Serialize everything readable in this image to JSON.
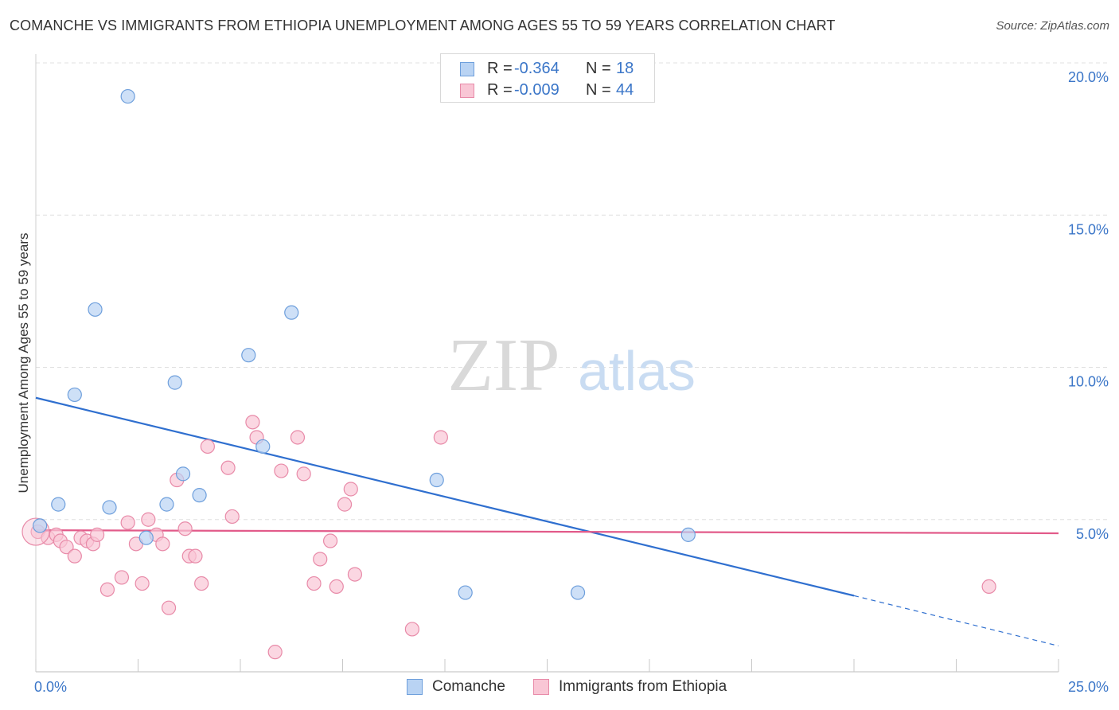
{
  "title": "COMANCHE VS IMMIGRANTS FROM ETHIOPIA UNEMPLOYMENT AMONG AGES 55 TO 59 YEARS CORRELATION CHART",
  "source": "Source: ZipAtlas.com",
  "watermark": {
    "zip": "ZIP",
    "atlas": "atlas"
  },
  "colors": {
    "comanche_fill": "#b9d3f3",
    "comanche_stroke": "#6e9fdc",
    "comanche_line": "#2f6fcf",
    "ethiopia_fill": "#f9c6d5",
    "ethiopia_stroke": "#e88aa8",
    "ethiopia_line": "#e25b8a",
    "axis_label": "#3b76c8",
    "grid": "#e0e0e0"
  },
  "legend_top": {
    "rows": [
      {
        "r_label": "R =",
        "r_value": "-0.364",
        "n_label": "N =",
        "n_value": "18"
      },
      {
        "r_label": "R =",
        "r_value": "-0.009",
        "n_label": "N =",
        "n_value": "44"
      }
    ]
  },
  "legend_bottom": {
    "series1": "Comanche",
    "series2": "Immigrants from Ethiopia"
  },
  "chart_data": {
    "type": "scatter",
    "title": "COMANCHE VS IMMIGRANTS FROM ETHIOPIA UNEMPLOYMENT AMONG AGES 55 TO 59 YEARS CORRELATION CHART",
    "xlabel": "",
    "ylabel": "Unemployment Among Ages 55 to 59 years",
    "xlim": [
      0,
      25
    ],
    "ylim": [
      0,
      20
    ],
    "x_tick_labels": [
      "0.0%",
      "25.0%"
    ],
    "y_ticks": [
      5,
      10,
      15,
      20
    ],
    "y_tick_labels": [
      "5.0%",
      "10.0%",
      "15.0%",
      "20.0%"
    ],
    "legend_position": "top-center",
    "series": [
      {
        "name": "Comanche",
        "R": -0.364,
        "N": 18,
        "points": [
          {
            "x": 0.1,
            "y": 4.8
          },
          {
            "x": 0.55,
            "y": 5.5
          },
          {
            "x": 0.95,
            "y": 9.1
          },
          {
            "x": 1.45,
            "y": 11.9
          },
          {
            "x": 1.8,
            "y": 5.4
          },
          {
            "x": 2.25,
            "y": 18.9
          },
          {
            "x": 2.7,
            "y": 4.4
          },
          {
            "x": 3.2,
            "y": 5.5
          },
          {
            "x": 3.4,
            "y": 9.5
          },
          {
            "x": 3.6,
            "y": 6.5
          },
          {
            "x": 4.0,
            "y": 5.8
          },
          {
            "x": 5.2,
            "y": 10.4
          },
          {
            "x": 5.55,
            "y": 7.4
          },
          {
            "x": 6.25,
            "y": 11.8
          },
          {
            "x": 9.8,
            "y": 6.3
          },
          {
            "x": 10.5,
            "y": 2.6
          },
          {
            "x": 13.25,
            "y": 2.6
          },
          {
            "x": 15.95,
            "y": 4.5
          }
        ],
        "trend": {
          "x0": 0,
          "y0": 9.0,
          "x1": 20.0,
          "y1": 2.5,
          "dashed_to_x": 25.0,
          "dashed_to_y": 0.85
        }
      },
      {
        "name": "Immigrants from Ethiopia",
        "R": -0.009,
        "N": 44,
        "points": [
          {
            "x": 0.05,
            "y": 4.6
          },
          {
            "x": 0.3,
            "y": 4.4
          },
          {
            "x": 0.5,
            "y": 4.5
          },
          {
            "x": 0.6,
            "y": 4.3
          },
          {
            "x": 0.75,
            "y": 4.1
          },
          {
            "x": 0.95,
            "y": 3.8
          },
          {
            "x": 1.1,
            "y": 4.4
          },
          {
            "x": 1.25,
            "y": 4.3
          },
          {
            "x": 1.4,
            "y": 4.2
          },
          {
            "x": 1.5,
            "y": 4.5
          },
          {
            "x": 1.75,
            "y": 2.7
          },
          {
            "x": 2.1,
            "y": 3.1
          },
          {
            "x": 2.25,
            "y": 4.9
          },
          {
            "x": 2.45,
            "y": 4.2
          },
          {
            "x": 2.6,
            "y": 2.9
          },
          {
            "x": 2.75,
            "y": 5.0
          },
          {
            "x": 2.95,
            "y": 4.5
          },
          {
            "x": 3.1,
            "y": 4.2
          },
          {
            "x": 3.25,
            "y": 2.1
          },
          {
            "x": 3.45,
            "y": 6.3
          },
          {
            "x": 3.65,
            "y": 4.7
          },
          {
            "x": 3.75,
            "y": 3.8
          },
          {
            "x": 3.9,
            "y": 3.8
          },
          {
            "x": 4.05,
            "y": 2.9
          },
          {
            "x": 4.2,
            "y": 7.4
          },
          {
            "x": 4.7,
            "y": 6.7
          },
          {
            "x": 4.8,
            "y": 5.1
          },
          {
            "x": 5.3,
            "y": 8.2
          },
          {
            "x": 5.4,
            "y": 7.7
          },
          {
            "x": 5.85,
            "y": 0.65
          },
          {
            "x": 6.0,
            "y": 6.6
          },
          {
            "x": 6.4,
            "y": 7.7
          },
          {
            "x": 6.55,
            "y": 6.5
          },
          {
            "x": 6.8,
            "y": 2.9
          },
          {
            "x": 6.95,
            "y": 3.7
          },
          {
            "x": 7.2,
            "y": 4.3
          },
          {
            "x": 7.35,
            "y": 2.8
          },
          {
            "x": 7.55,
            "y": 5.5
          },
          {
            "x": 7.7,
            "y": 6.0
          },
          {
            "x": 7.8,
            "y": 3.2
          },
          {
            "x": 9.2,
            "y": 1.4
          },
          {
            "x": 9.9,
            "y": 7.7
          },
          {
            "x": 23.3,
            "y": 2.8
          },
          {
            "x": 0.0,
            "y": 4.6,
            "large": true
          }
        ],
        "trend": {
          "x0": 0,
          "y0": 4.65,
          "x1": 25.0,
          "y1": 4.55
        }
      }
    ]
  }
}
